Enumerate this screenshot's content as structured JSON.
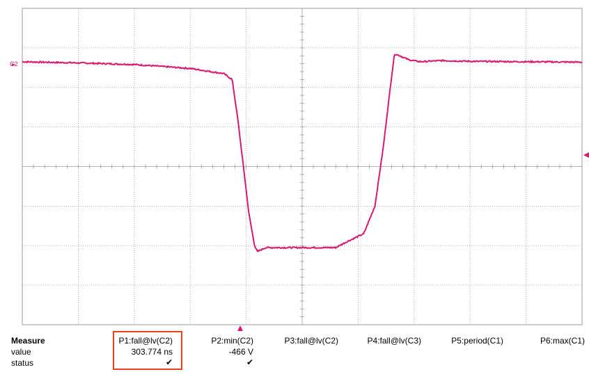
{
  "screen": {
    "channel_label": "C2",
    "trace_color": "#d6196e",
    "grid_color": "#9a9a9a",
    "highlight_color": "#e8421d"
  },
  "chart_data": {
    "type": "line",
    "grid": true,
    "series": [
      {
        "values_in_divisions": [
          [
            0.0,
            2.65
          ],
          [
            1.0,
            2.62
          ],
          [
            2.0,
            2.58
          ],
          [
            3.0,
            2.48
          ],
          [
            3.6,
            2.35
          ],
          [
            3.75,
            2.2
          ],
          [
            3.85,
            1.2
          ],
          [
            3.95,
            0.0
          ],
          [
            4.05,
            -1.2
          ],
          [
            4.15,
            -2.0
          ],
          [
            4.2,
            -2.15
          ],
          [
            4.35,
            -2.05
          ],
          [
            5.0,
            -2.05
          ],
          [
            5.6,
            -2.05
          ],
          [
            5.8,
            -1.9
          ],
          [
            6.1,
            -1.7
          ],
          [
            6.3,
            -1.0
          ],
          [
            6.45,
            0.5
          ],
          [
            6.6,
            2.3
          ],
          [
            6.65,
            2.85
          ],
          [
            6.75,
            2.8
          ],
          [
            6.9,
            2.7
          ],
          [
            7.1,
            2.65
          ],
          [
            7.5,
            2.68
          ],
          [
            8.0,
            2.66
          ],
          [
            9.0,
            2.65
          ],
          [
            10.0,
            2.64
          ]
        ]
      }
    ],
    "xlim_div": [
      0,
      10
    ],
    "ylim_div": [
      -4,
      4
    ]
  },
  "measure": {
    "header": "Measure",
    "row_value_label": "value",
    "row_status_label": "status",
    "columns": [
      {
        "name": "P1:fall@lv(C2)",
        "value": "303.774 ns",
        "status": "✔"
      },
      {
        "name": "P2:min(C2)",
        "value": "-466 V",
        "status": "✔"
      },
      {
        "name": "P3:fall@lv(C2)",
        "value": "",
        "status": ""
      },
      {
        "name": "P4:fall@lv(C3)",
        "value": "",
        "status": ""
      },
      {
        "name": "P5:period(C1)",
        "value": "",
        "status": ""
      },
      {
        "name": "P6:max(C1)",
        "value": "",
        "status": ""
      }
    ]
  }
}
